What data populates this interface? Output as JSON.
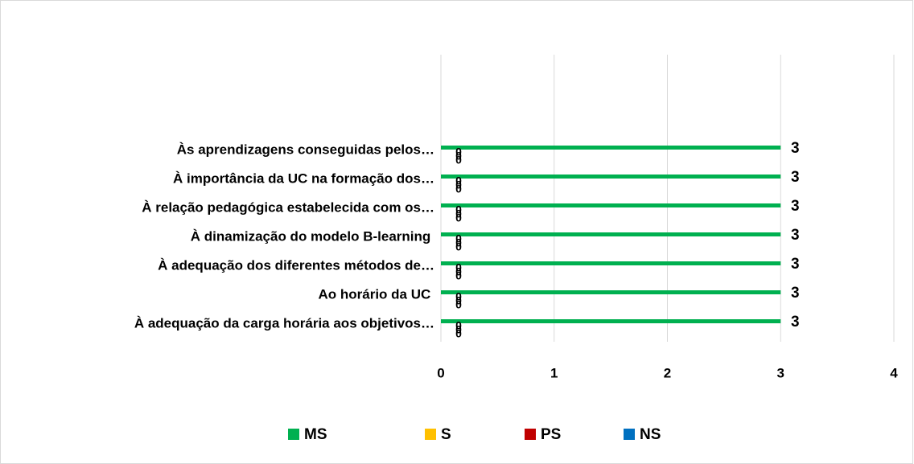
{
  "chart_data": {
    "type": "hbar",
    "categories": [
      "Às aprendizagens conseguidas pelos…",
      "À importância da UC na formação dos…",
      "À relação pedagógica estabelecida com os…",
      "À dinamização do modelo B-learning ",
      "À adequação dos diferentes métodos de…",
      "Ao horário da UC ",
      "À adequação da carga horária aos objetivos…"
    ],
    "series": [
      {
        "name": "MS",
        "color": "#00b050",
        "values": [
          3,
          3,
          3,
          3,
          3,
          3,
          3
        ]
      },
      {
        "name": "S",
        "color": "#ffc000",
        "values": [
          0,
          0,
          0,
          0,
          0,
          0,
          0
        ]
      },
      {
        "name": "PS",
        "color": "#c00000",
        "values": [
          0,
          0,
          0,
          0,
          0,
          0,
          0
        ]
      },
      {
        "name": "NS",
        "color": "#0070c0",
        "values": [
          0,
          0,
          0,
          0,
          0,
          0,
          0
        ]
      }
    ],
    "xlim": [
      0,
      4
    ],
    "xticks": [
      0,
      1,
      2,
      3,
      4
    ],
    "grid": true,
    "legend": "bottom"
  }
}
